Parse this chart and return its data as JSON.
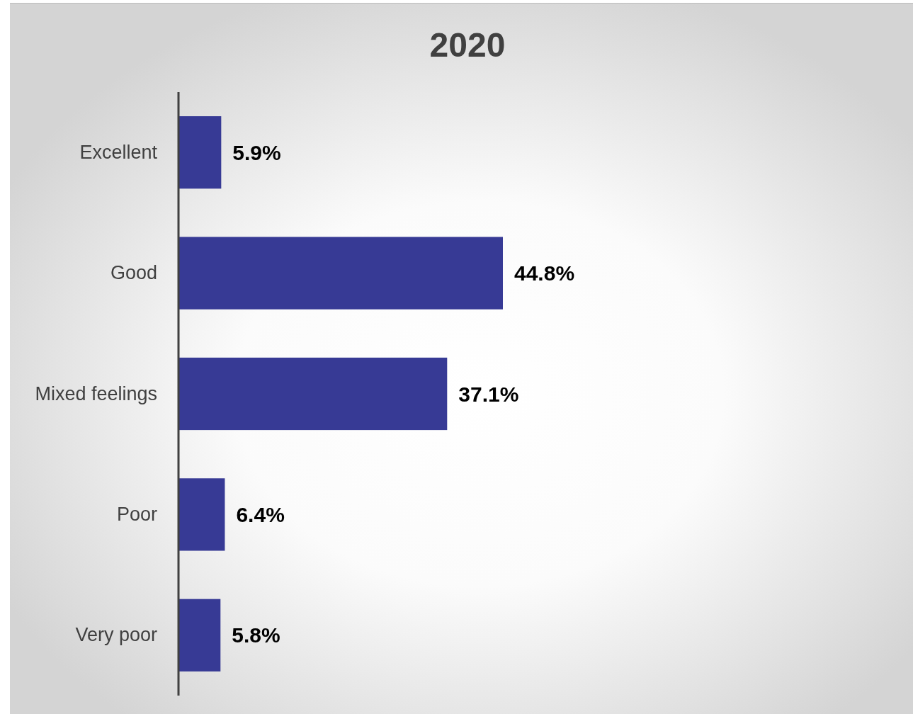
{
  "chart_data": {
    "type": "bar",
    "orientation": "horizontal",
    "title": "2020",
    "categories": [
      "Excellent",
      "Good",
      "Mixed feelings",
      "Poor",
      "Very poor"
    ],
    "values": [
      5.9,
      44.8,
      37.1,
      6.4,
      5.8
    ],
    "value_labels": [
      "5.9%",
      "44.8%",
      "37.1%",
      "6.4%",
      "5.8%"
    ],
    "color": "#373a95"
  }
}
